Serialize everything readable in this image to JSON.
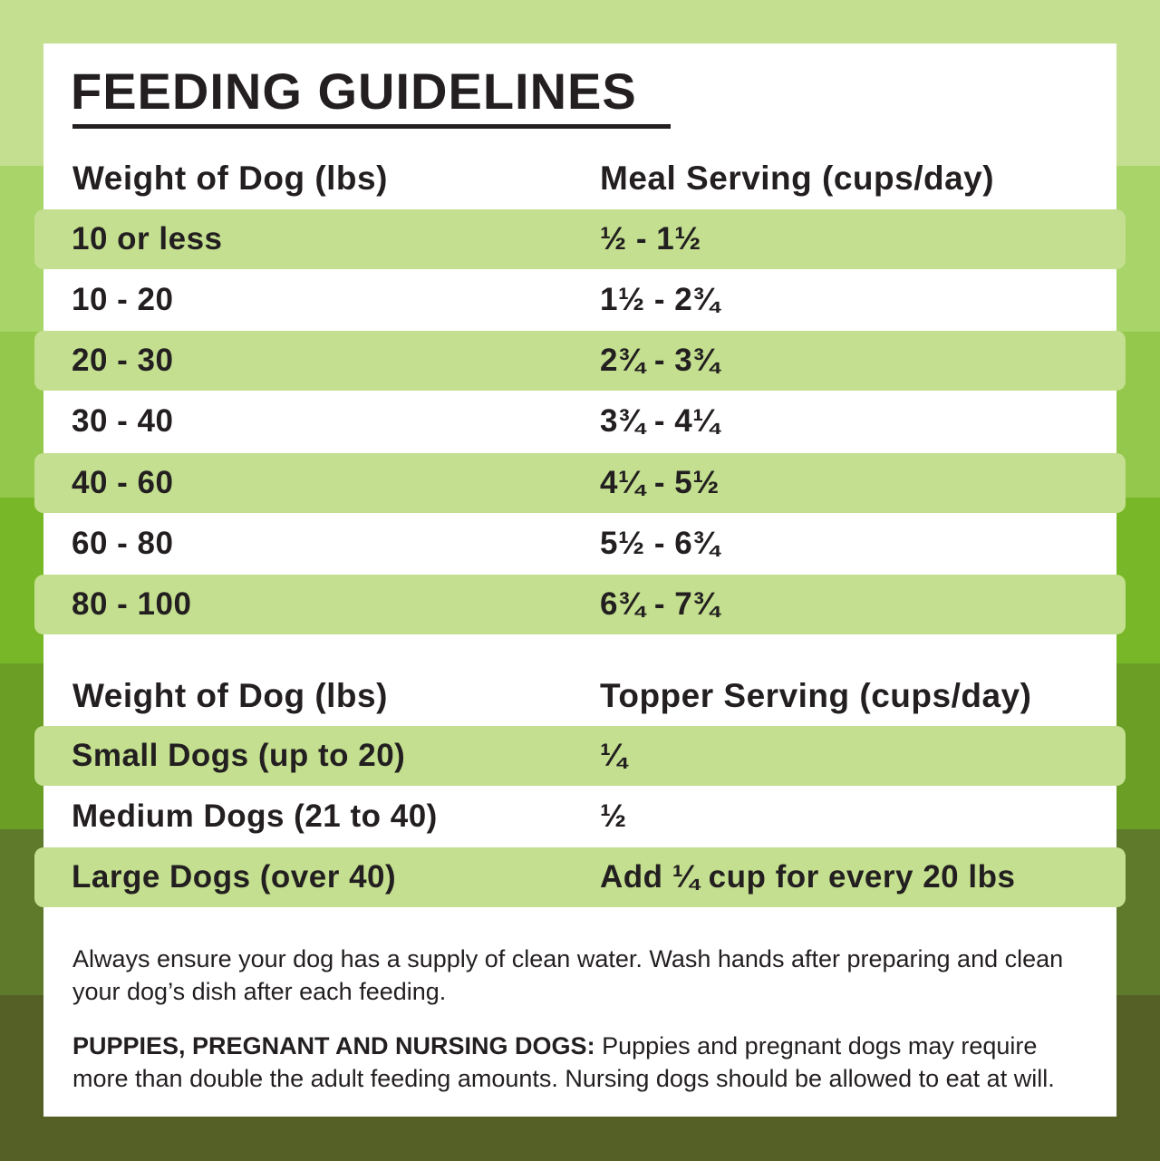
{
  "background_bands": [
    "#c3df8f",
    "#a8d46a",
    "#94c84c",
    "#78b828",
    "#6a9e25",
    "#5e7a2a",
    "#556026"
  ],
  "highlight_color": "#c3df8f",
  "title": "FEEDING GUIDELINES",
  "meal_table": {
    "headers": [
      "Weight of Dog (lbs)",
      "Meal Serving (cups/day)"
    ],
    "rows": [
      [
        "10 or less",
        "½ - 1½"
      ],
      [
        "10 - 20",
        "1½ - 2¾"
      ],
      [
        "20 - 30",
        "2¾ - 3¾"
      ],
      [
        "30 - 40",
        "3¾ - 4¼"
      ],
      [
        "40 - 60",
        "4¼ - 5½"
      ],
      [
        "60 - 80",
        "5½ - 6¾"
      ],
      [
        "80 - 100",
        "6¾ - 7¾"
      ]
    ]
  },
  "topper_table": {
    "headers": [
      "Weight of Dog (lbs)",
      "Topper Serving (cups/day)"
    ],
    "rows": [
      [
        "Small Dogs (up to 20)",
        "¼"
      ],
      [
        "Medium Dogs (21 to 40)",
        "½"
      ],
      [
        "Large Dogs (over 40)",
        "Add ¼ cup for every 20 lbs"
      ]
    ]
  },
  "notes": {
    "water": "Always ensure your dog has a supply of clean water. Wash hands after preparing and clean your dog’s dish after each feeding.",
    "puppies_label": "PUPPIES, PREGNANT AND NURSING DOGS:",
    "puppies_text": " Puppies and pregnant dogs may require more than double the adult feeding amounts. Nursing dogs should be allowed to eat at will."
  }
}
